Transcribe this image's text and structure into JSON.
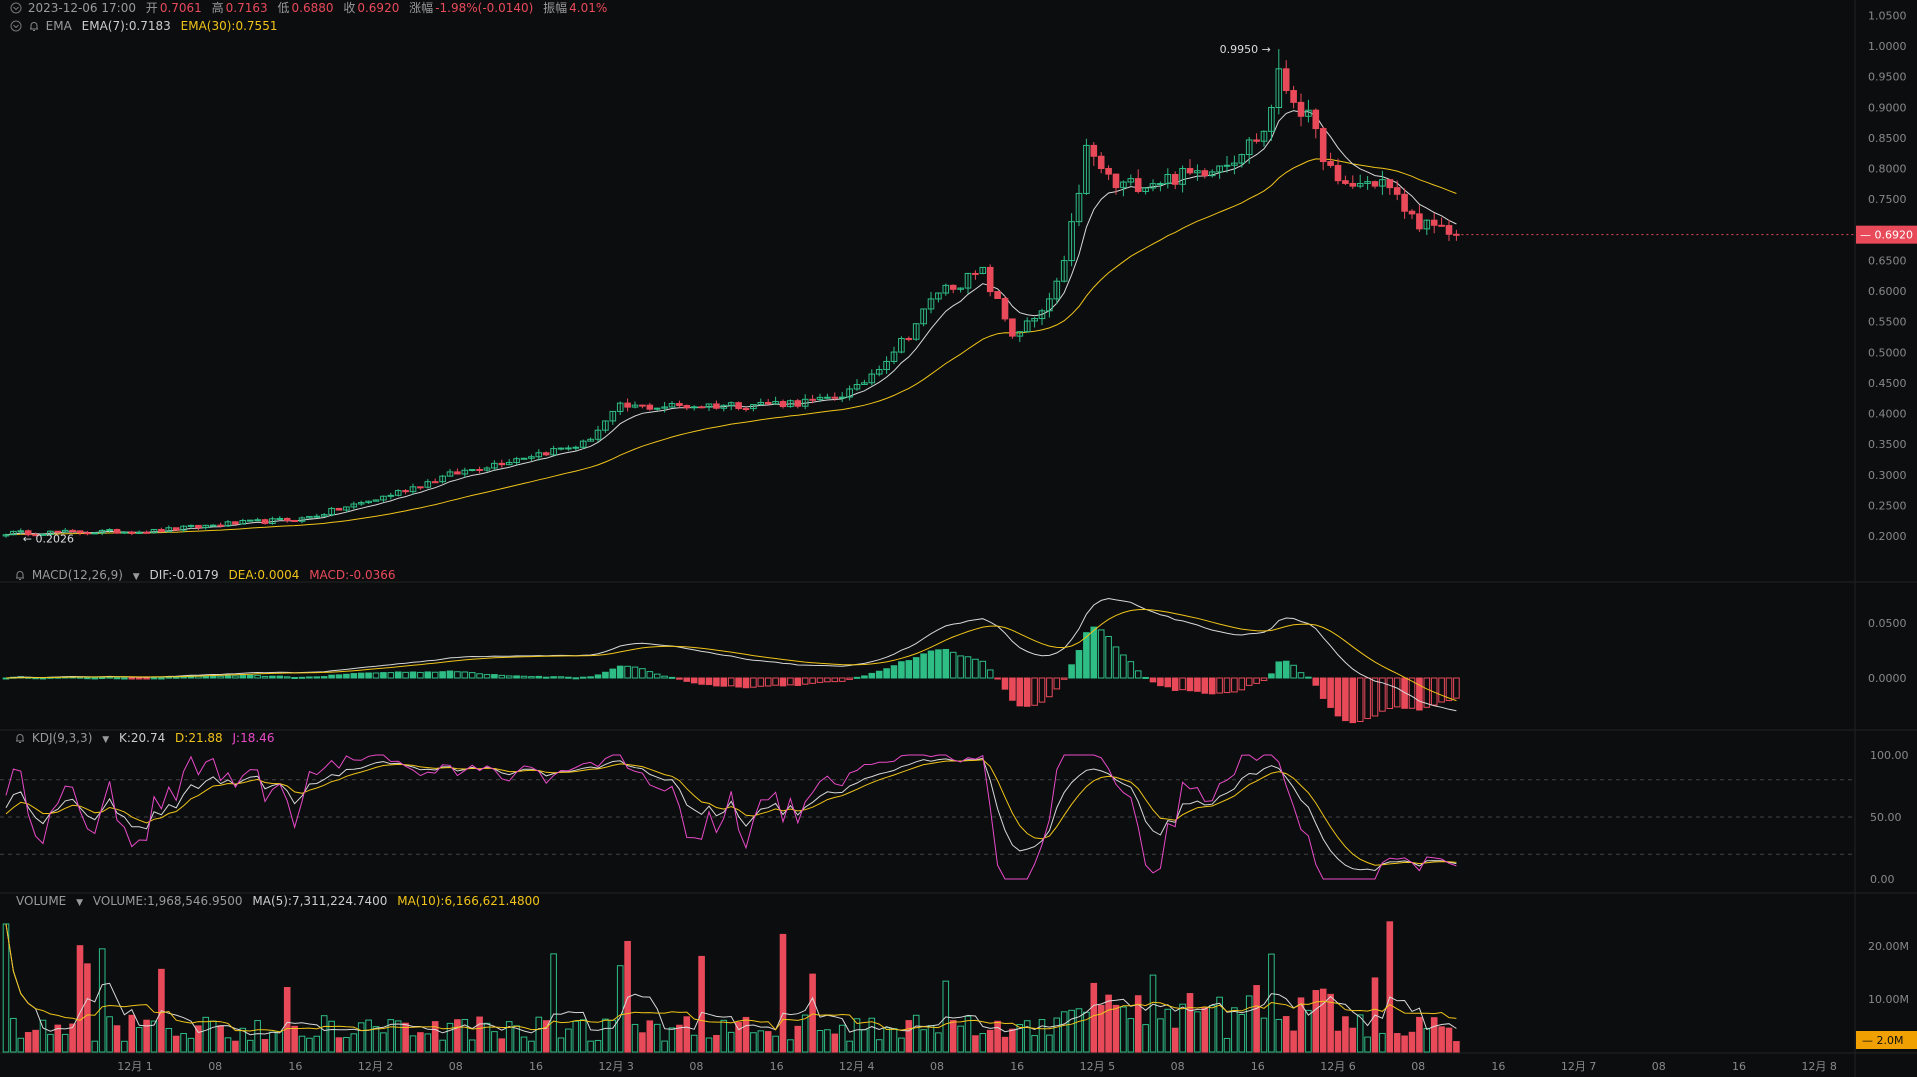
{
  "main_panel": {
    "ohlc_header": {
      "datetime": "2023-12-06 17:00",
      "open_label": "开",
      "open": "0.7061",
      "high_label": "高",
      "high": "0.7163",
      "low_label": "低",
      "low": "0.6880",
      "close_label": "收",
      "close": "0.6920",
      "change_label": "涨幅",
      "change": "-1.98%(-0.0140)",
      "amplitude_label": "振幅",
      "amplitude": "4.01%"
    },
    "ema_header": {
      "name": "EMA",
      "ema7": "EMA(7):0.7183",
      "ema30": "EMA(30):0.7551"
    },
    "y_ticks": [
      "1.0500",
      "1.0000",
      "0.9500",
      "0.9000",
      "0.8500",
      "0.8000",
      "0.7500",
      "0.7000",
      "0.6500",
      "0.6000",
      "0.5500",
      "0.5000",
      "0.4500",
      "0.4000",
      "0.3500",
      "0.3000",
      "0.2500",
      "0.2000"
    ],
    "current_price_tag": "0.6920",
    "max_marker": "0.9950",
    "min_marker": "0.2026"
  },
  "macd_panel": {
    "name": "MACD(12,26,9)",
    "dif": "DIF:-0.0179",
    "dea": "DEA:0.0004",
    "macd": "MACD:-0.0366",
    "y_ticks": [
      "0.0500",
      "0.0000"
    ]
  },
  "kdj_panel": {
    "name": "KDJ(9,3,3)",
    "k": "K:20.74",
    "d": "D:21.88",
    "j": "J:18.46",
    "y_ticks": [
      "100.00",
      "50.00",
      "0.00"
    ]
  },
  "volume_panel": {
    "name": "VOLUME",
    "volume": "VOLUME:1,968,546.9500",
    "ma5": "MA(5):7,311,224.7400",
    "ma10": "MA(10):6,166,621.4800",
    "y_ticks": [
      "20.00M",
      "10.00M"
    ],
    "current_volume_tag": "2.0M"
  },
  "x_axis_labels": [
    "12月 1",
    "08",
    "16",
    "12月 2",
    "08",
    "16",
    "12月 3",
    "08",
    "16",
    "12月 4",
    "08",
    "16",
    "12月 5",
    "08",
    "16",
    "12月 6",
    "08",
    "16",
    "12月 7",
    "08",
    "16",
    "12月 8"
  ],
  "colors": {
    "background": "#0c0d0f",
    "up": "#2ebd85",
    "down": "#e84a5a",
    "ema7": "#d8d8d8",
    "ema30": "#f0c419",
    "kdj_j": "#e84ac8",
    "vol_tag": "#f0a000"
  },
  "chart_data": {
    "type": "candlestick",
    "interval": "hourly",
    "close_series_anchors": [
      {
        "hour": 0,
        "close": 0.205
      },
      {
        "hour": 20,
        "close": 0.208
      },
      {
        "hour": 30,
        "close": 0.22
      },
      {
        "hour": 40,
        "close": 0.228
      },
      {
        "hour": 50,
        "close": 0.26
      },
      {
        "hour": 60,
        "close": 0.3
      },
      {
        "hour": 70,
        "close": 0.33
      },
      {
        "hour": 78,
        "close": 0.35
      },
      {
        "hour": 83,
        "close": 0.41
      },
      {
        "hour": 100,
        "close": 0.415
      },
      {
        "hour": 110,
        "close": 0.42
      },
      {
        "hour": 115,
        "close": 0.44
      },
      {
        "hour": 122,
        "close": 0.53
      },
      {
        "hour": 126,
        "close": 0.6
      },
      {
        "hour": 132,
        "close": 0.63
      },
      {
        "hour": 136,
        "close": 0.53
      },
      {
        "hour": 140,
        "close": 0.56
      },
      {
        "hour": 143,
        "close": 0.64
      },
      {
        "hour": 146,
        "close": 0.83
      },
      {
        "hour": 150,
        "close": 0.77
      },
      {
        "hour": 160,
        "close": 0.79
      },
      {
        "hour": 166,
        "close": 0.82
      },
      {
        "hour": 170,
        "close": 0.86
      },
      {
        "hour": 172,
        "close": 0.95
      },
      {
        "hour": 176,
        "close": 0.88
      },
      {
        "hour": 180,
        "close": 0.77
      },
      {
        "hour": 186,
        "close": 0.78
      },
      {
        "hour": 190,
        "close": 0.72
      },
      {
        "hour": 193,
        "close": 0.7
      },
      {
        "hour": 196,
        "close": 0.692
      }
    ],
    "y_range": [
      0.18,
      1.05
    ],
    "max_price": 0.995,
    "min_price": 0.2026,
    "last_close": 0.692
  }
}
